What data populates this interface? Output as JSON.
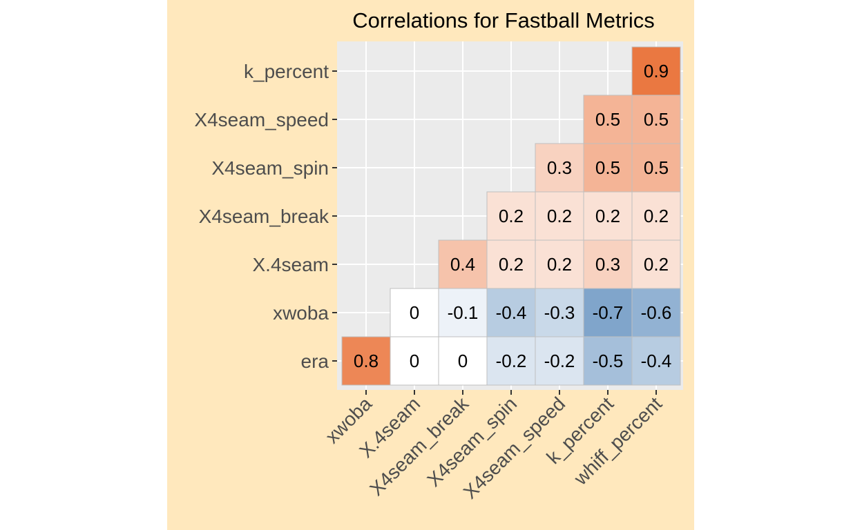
{
  "chart_data": {
    "type": "heatmap",
    "title": "Correlations for Fastball Metrics",
    "x_categories": [
      "xwoba",
      "X.4seam",
      "X4seam_break",
      "X4seam_spin",
      "X4seam_speed",
      "k_percent",
      "whiff_percent"
    ],
    "y_categories": [
      "era",
      "xwoba",
      "X.4seam",
      "X4seam_break",
      "X4seam_spin",
      "X4seam_speed",
      "k_percent"
    ],
    "cells": [
      {
        "x": "xwoba",
        "y": "era",
        "value": 0.8,
        "label": "0.8"
      },
      {
        "x": "X.4seam",
        "y": "era",
        "value": 0,
        "label": "0"
      },
      {
        "x": "X4seam_break",
        "y": "era",
        "value": 0,
        "label": "0"
      },
      {
        "x": "X4seam_spin",
        "y": "era",
        "value": -0.2,
        "label": "-0.2"
      },
      {
        "x": "X4seam_speed",
        "y": "era",
        "value": -0.2,
        "label": "-0.2"
      },
      {
        "x": "k_percent",
        "y": "era",
        "value": -0.5,
        "label": "-0.5"
      },
      {
        "x": "whiff_percent",
        "y": "era",
        "value": -0.4,
        "label": "-0.4"
      },
      {
        "x": "X.4seam",
        "y": "xwoba",
        "value": 0,
        "label": "0"
      },
      {
        "x": "X4seam_break",
        "y": "xwoba",
        "value": -0.1,
        "label": "-0.1"
      },
      {
        "x": "X4seam_spin",
        "y": "xwoba",
        "value": -0.4,
        "label": "-0.4"
      },
      {
        "x": "X4seam_speed",
        "y": "xwoba",
        "value": -0.3,
        "label": "-0.3"
      },
      {
        "x": "k_percent",
        "y": "xwoba",
        "value": -0.7,
        "label": "-0.7"
      },
      {
        "x": "whiff_percent",
        "y": "xwoba",
        "value": -0.6,
        "label": "-0.6"
      },
      {
        "x": "X4seam_break",
        "y": "X.4seam",
        "value": 0.4,
        "label": "0.4"
      },
      {
        "x": "X4seam_spin",
        "y": "X.4seam",
        "value": 0.2,
        "label": "0.2"
      },
      {
        "x": "X4seam_speed",
        "y": "X.4seam",
        "value": 0.2,
        "label": "0.2"
      },
      {
        "x": "k_percent",
        "y": "X.4seam",
        "value": 0.3,
        "label": "0.3"
      },
      {
        "x": "whiff_percent",
        "y": "X.4seam",
        "value": 0.2,
        "label": "0.2"
      },
      {
        "x": "X4seam_spin",
        "y": "X4seam_break",
        "value": 0.2,
        "label": "0.2"
      },
      {
        "x": "X4seam_speed",
        "y": "X4seam_break",
        "value": 0.2,
        "label": "0.2"
      },
      {
        "x": "k_percent",
        "y": "X4seam_break",
        "value": 0.2,
        "label": "0.2"
      },
      {
        "x": "whiff_percent",
        "y": "X4seam_break",
        "value": 0.2,
        "label": "0.2"
      },
      {
        "x": "X4seam_speed",
        "y": "X4seam_spin",
        "value": 0.3,
        "label": "0.3"
      },
      {
        "x": "k_percent",
        "y": "X4seam_spin",
        "value": 0.5,
        "label": "0.5"
      },
      {
        "x": "whiff_percent",
        "y": "X4seam_spin",
        "value": 0.5,
        "label": "0.5"
      },
      {
        "x": "k_percent",
        "y": "X4seam_speed",
        "value": 0.5,
        "label": "0.5"
      },
      {
        "x": "whiff_percent",
        "y": "X4seam_speed",
        "value": 0.5,
        "label": "0.5"
      },
      {
        "x": "whiff_percent",
        "y": "k_percent",
        "value": 0.9,
        "label": "0.9"
      }
    ],
    "value_range": [
      -1,
      1
    ],
    "colors": {
      "low": "#4a7fb5",
      "mid": "#ffffff",
      "high": "#e8692c",
      "panel_background": "#ebebeb",
      "gridline": "#ffffff",
      "plot_background": "#ffe8bd",
      "cell_border": "#bfbfbf"
    },
    "grid": true,
    "legend": "none"
  }
}
